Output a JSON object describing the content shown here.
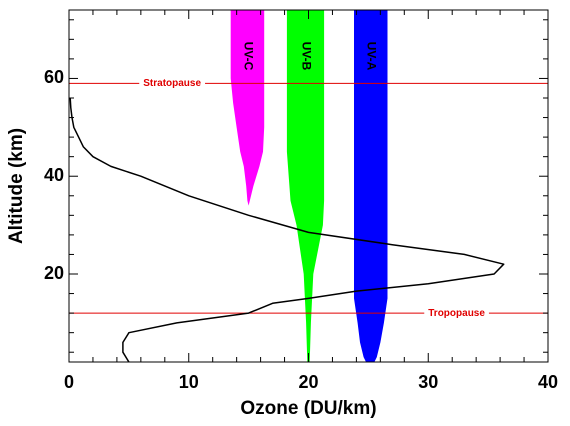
{
  "chart_data": {
    "type": "line",
    "title": "",
    "xlabel": "Ozone (DU/km)",
    "ylabel": "Altitude (km)",
    "xlim": [
      0,
      40
    ],
    "ylim": [
      2,
      74
    ],
    "x_ticks": [
      0,
      10,
      20,
      30,
      40
    ],
    "y_ticks": [
      20,
      40,
      60
    ],
    "grid": false,
    "legend": "none",
    "series": [
      {
        "color": "#000000",
        "points": [
          [
            5.0,
            2
          ],
          [
            4.5,
            4
          ],
          [
            4.5,
            6
          ],
          [
            5.0,
            8
          ],
          [
            9.0,
            10
          ],
          [
            15.0,
            12
          ],
          [
            17.0,
            14
          ],
          [
            20.0,
            15
          ],
          [
            24.0,
            16.5
          ],
          [
            30.0,
            18
          ],
          [
            35.5,
            20
          ],
          [
            36.3,
            22
          ],
          [
            33.0,
            24
          ],
          [
            27.0,
            26
          ],
          [
            20.0,
            28.5
          ],
          [
            15.0,
            32
          ],
          [
            10.0,
            36
          ],
          [
            6.0,
            40
          ],
          [
            3.5,
            42
          ],
          [
            2.0,
            44
          ],
          [
            1.2,
            46
          ],
          [
            0.8,
            48
          ],
          [
            0.4,
            50
          ],
          [
            0.25,
            52
          ],
          [
            0.15,
            54
          ],
          [
            0.1,
            56
          ]
        ]
      }
    ],
    "reference_lines": [
      {
        "label": "Stratopause",
        "y": 59,
        "color": "#e00000"
      },
      {
        "label": "Tropopause",
        "y": 12,
        "color": "#e00000"
      }
    ],
    "bands": [
      {
        "label": "UV-C",
        "color": "#ff00ff",
        "profile": [
          [
            74,
            13.5,
            16.3
          ],
          [
            60,
            13.5,
            16.3
          ],
          [
            55,
            13.7,
            16.3
          ],
          [
            50,
            14.0,
            16.3
          ],
          [
            45,
            14.3,
            16.2
          ],
          [
            42,
            14.6,
            15.9
          ],
          [
            38,
            14.8,
            15.4
          ],
          [
            35,
            14.9,
            15.1
          ],
          [
            34,
            15.0,
            15.0
          ]
        ]
      },
      {
        "label": "UV-B",
        "color": "#00ff00",
        "profile": [
          [
            74,
            18.2,
            21.3
          ],
          [
            55,
            18.2,
            21.3
          ],
          [
            45,
            18.2,
            21.3
          ],
          [
            35,
            18.5,
            21.3
          ],
          [
            30,
            19.0,
            21.2
          ],
          [
            25,
            19.3,
            20.8
          ],
          [
            20,
            19.6,
            20.4
          ],
          [
            10,
            19.8,
            20.2
          ],
          [
            2,
            19.9,
            20.1
          ]
        ]
      },
      {
        "label": "UV-A",
        "color": "#0000ff",
        "profile": [
          [
            74,
            23.8,
            26.6
          ],
          [
            20,
            23.8,
            26.6
          ],
          [
            15,
            23.8,
            26.6
          ],
          [
            10,
            24.1,
            26.3
          ],
          [
            6,
            24.3,
            26.0
          ],
          [
            3,
            24.6,
            25.7
          ],
          [
            2,
            24.8,
            25.5
          ]
        ]
      }
    ]
  }
}
